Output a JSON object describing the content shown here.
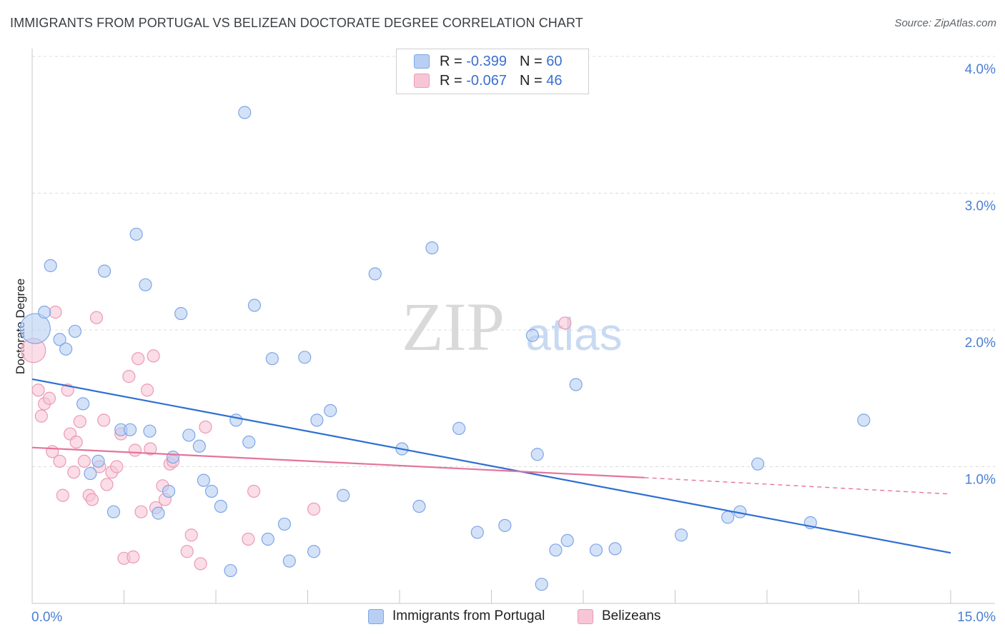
{
  "title": "IMMIGRANTS FROM PORTUGAL VS BELIZEAN DOCTORATE DEGREE CORRELATION CHART",
  "source": "Source: ZipAtlas.com",
  "watermark": {
    "zip": "ZIP",
    "atlas": "atlas"
  },
  "legend": {
    "series1": {
      "r_label": "R =",
      "r_value": "-0.399",
      "n_label": "N =",
      "n_value": "60"
    },
    "series2": {
      "r_label": "R =",
      "r_value": "-0.067",
      "n_label": "N =",
      "n_value": "46"
    }
  },
  "bottom_legend": {
    "series1": "Immigrants from Portugal",
    "series2": "Belizeans"
  },
  "colors": {
    "blue_fill": "#b7cff3",
    "blue_stroke": "#7ea6e6",
    "blue_line": "#2e6fd1",
    "pink_fill": "#f7c6d6",
    "pink_stroke": "#ec9ab5",
    "pink_line": "#e5739d",
    "tick": "#4a7fd4",
    "grid": "#dcdcdc"
  },
  "chart_data": {
    "type": "scatter",
    "title": "IMMIGRANTS FROM PORTUGAL VS BELIZEAN DOCTORATE DEGREE CORRELATION CHART",
    "xlabel": "",
    "ylabel": "Doctorate Degree",
    "xlim": [
      0,
      15
    ],
    "ylim": [
      0,
      4.0
    ],
    "x_tick_labels": [
      "0.0%",
      "15.0%"
    ],
    "y_ticks": [
      1.0,
      2.0,
      3.0,
      4.0
    ],
    "y_tick_labels": [
      "1.0%",
      "2.0%",
      "3.0%",
      "4.0%"
    ],
    "grid": "horizontal dashed",
    "series": [
      {
        "name": "Immigrants from Portugal",
        "color": "#7ea6e6",
        "trend": {
          "x": [
            0,
            15
          ],
          "y": [
            1.64,
            0.37
          ]
        },
        "points": [
          {
            "x": 0.05,
            "y": 2.01,
            "big": true
          },
          {
            "x": 0.2,
            "y": 2.13
          },
          {
            "x": 0.3,
            "y": 2.47
          },
          {
            "x": 0.45,
            "y": 1.93
          },
          {
            "x": 0.55,
            "y": 1.86
          },
          {
            "x": 0.7,
            "y": 1.99
          },
          {
            "x": 0.83,
            "y": 1.46
          },
          {
            "x": 0.95,
            "y": 0.95
          },
          {
            "x": 1.08,
            "y": 1.04
          },
          {
            "x": 1.18,
            "y": 2.43
          },
          {
            "x": 1.33,
            "y": 0.67
          },
          {
            "x": 1.45,
            "y": 1.27
          },
          {
            "x": 1.6,
            "y": 1.27
          },
          {
            "x": 1.7,
            "y": 2.7
          },
          {
            "x": 1.85,
            "y": 2.33
          },
          {
            "x": 1.92,
            "y": 1.26
          },
          {
            "x": 2.06,
            "y": 0.66
          },
          {
            "x": 2.23,
            "y": 0.82
          },
          {
            "x": 2.3,
            "y": 1.07
          },
          {
            "x": 2.43,
            "y": 2.12
          },
          {
            "x": 2.56,
            "y": 1.23
          },
          {
            "x": 2.73,
            "y": 1.15
          },
          {
            "x": 2.8,
            "y": 0.9
          },
          {
            "x": 2.93,
            "y": 0.82
          },
          {
            "x": 3.08,
            "y": 0.71
          },
          {
            "x": 3.24,
            "y": 0.24
          },
          {
            "x": 3.33,
            "y": 1.34
          },
          {
            "x": 3.47,
            "y": 3.59
          },
          {
            "x": 3.54,
            "y": 1.18
          },
          {
            "x": 3.63,
            "y": 2.18
          },
          {
            "x": 3.85,
            "y": 0.47
          },
          {
            "x": 3.92,
            "y": 1.79
          },
          {
            "x": 4.12,
            "y": 0.58
          },
          {
            "x": 4.2,
            "y": 0.31
          },
          {
            "x": 4.45,
            "y": 1.8
          },
          {
            "x": 4.6,
            "y": 0.38
          },
          {
            "x": 4.65,
            "y": 1.34
          },
          {
            "x": 4.87,
            "y": 1.41
          },
          {
            "x": 5.08,
            "y": 0.79
          },
          {
            "x": 5.6,
            "y": 2.41
          },
          {
            "x": 6.04,
            "y": 1.13
          },
          {
            "x": 6.32,
            "y": 0.71
          },
          {
            "x": 6.53,
            "y": 2.6
          },
          {
            "x": 6.97,
            "y": 1.28
          },
          {
            "x": 7.27,
            "y": 0.52
          },
          {
            "x": 7.72,
            "y": 0.57
          },
          {
            "x": 8.17,
            "y": 1.96
          },
          {
            "x": 8.25,
            "y": 1.09
          },
          {
            "x": 8.32,
            "y": 0.14
          },
          {
            "x": 8.55,
            "y": 0.39
          },
          {
            "x": 8.74,
            "y": 0.46
          },
          {
            "x": 8.88,
            "y": 1.6
          },
          {
            "x": 9.21,
            "y": 0.39
          },
          {
            "x": 9.52,
            "y": 0.4
          },
          {
            "x": 10.6,
            "y": 0.5
          },
          {
            "x": 11.36,
            "y": 0.63
          },
          {
            "x": 11.56,
            "y": 0.67
          },
          {
            "x": 11.85,
            "y": 1.02
          },
          {
            "x": 12.71,
            "y": 0.59
          },
          {
            "x": 13.58,
            "y": 1.34
          }
        ]
      },
      {
        "name": "Belizeans",
        "color": "#ec9ab5",
        "trend": {
          "x": [
            0,
            10.0,
            15
          ],
          "y": [
            1.14,
            0.92,
            0.8
          ],
          "solid_until": 10.0
        },
        "points": [
          {
            "x": 0.02,
            "y": 1.85,
            "big": true
          },
          {
            "x": 0.1,
            "y": 1.56
          },
          {
            "x": 0.15,
            "y": 1.37
          },
          {
            "x": 0.2,
            "y": 1.46
          },
          {
            "x": 0.28,
            "y": 1.5
          },
          {
            "x": 0.33,
            "y": 1.11
          },
          {
            "x": 0.38,
            "y": 2.13
          },
          {
            "x": 0.45,
            "y": 1.04
          },
          {
            "x": 0.5,
            "y": 0.79
          },
          {
            "x": 0.58,
            "y": 1.56
          },
          {
            "x": 0.62,
            "y": 1.24
          },
          {
            "x": 0.68,
            "y": 0.96
          },
          {
            "x": 0.72,
            "y": 1.18
          },
          {
            "x": 0.78,
            "y": 1.33
          },
          {
            "x": 0.85,
            "y": 1.04
          },
          {
            "x": 0.93,
            "y": 0.79
          },
          {
            "x": 0.98,
            "y": 0.76
          },
          {
            "x": 1.05,
            "y": 2.09
          },
          {
            "x": 1.1,
            "y": 1.0
          },
          {
            "x": 1.17,
            "y": 1.34
          },
          {
            "x": 1.22,
            "y": 0.87
          },
          {
            "x": 1.3,
            "y": 0.96
          },
          {
            "x": 1.38,
            "y": 1.0
          },
          {
            "x": 1.45,
            "y": 1.24
          },
          {
            "x": 1.5,
            "y": 0.33
          },
          {
            "x": 1.58,
            "y": 1.66
          },
          {
            "x": 1.65,
            "y": 0.34
          },
          {
            "x": 1.68,
            "y": 1.12
          },
          {
            "x": 1.73,
            "y": 1.79
          },
          {
            "x": 1.78,
            "y": 0.67
          },
          {
            "x": 1.88,
            "y": 1.56
          },
          {
            "x": 1.93,
            "y": 1.13
          },
          {
            "x": 1.98,
            "y": 1.81
          },
          {
            "x": 2.02,
            "y": 0.7
          },
          {
            "x": 2.13,
            "y": 0.86
          },
          {
            "x": 2.17,
            "y": 0.76
          },
          {
            "x": 2.25,
            "y": 1.02
          },
          {
            "x": 2.3,
            "y": 1.04
          },
          {
            "x": 2.53,
            "y": 0.38
          },
          {
            "x": 2.6,
            "y": 0.5
          },
          {
            "x": 2.75,
            "y": 0.29
          },
          {
            "x": 2.83,
            "y": 1.29
          },
          {
            "x": 3.53,
            "y": 0.47
          },
          {
            "x": 3.62,
            "y": 0.82
          },
          {
            "x": 4.6,
            "y": 0.69
          },
          {
            "x": 8.7,
            "y": 2.05
          }
        ]
      }
    ]
  }
}
